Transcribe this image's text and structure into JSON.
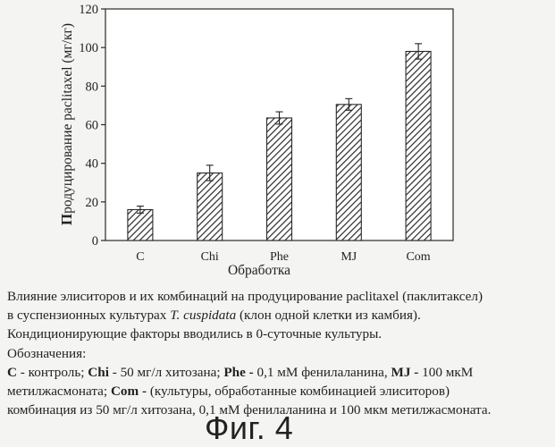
{
  "chart_data": {
    "type": "bar",
    "categories": [
      "C",
      "Chi",
      "Phe",
      "MJ",
      "Com"
    ],
    "values": [
      16,
      35,
      63.5,
      70.5,
      98
    ],
    "errors": [
      1.8,
      4,
      3.2,
      3,
      4
    ],
    "ylabel_bold": "П",
    "ylabel_rest": "родуцирование paclitaxel (мг/кг)",
    "xlabel": "Обработка",
    "ylim": [
      0,
      120
    ],
    "yticks": [
      0,
      20,
      40,
      60,
      80,
      100,
      120
    ],
    "grid": false,
    "bar_fill": "hatched diagonal",
    "colors": {
      "bar_line": "#2a2a2a",
      "plot_bg": "#ffffff",
      "axis": "#2a2a2a"
    }
  },
  "caption": {
    "line1": "Влияние элиситоров и их комбинаций на продуцирование paclitaxel (паклитаксел)",
    "line2_pre": "в суспензионных культурах ",
    "line2_species": "T. cuspidata",
    "line2_post": " (клон одной клетки из камбия).",
    "line3": "Кондиционирующие факторы вводились в 0-суточные культуры.",
    "line4": "Обозначения:",
    "line5_c_key": "C",
    "line5_c_val": " - контроль; ",
    "line5_chi_key": "Chi",
    "line5_chi_val": " - 50 мг/л хитозана; ",
    "line5_phe_key": "Phe -",
    "line5_phe_val": " 0,1 мМ фенилаланина, ",
    "line5_mj_key": "MJ -",
    "line5_mj_val": " 100 мкМ",
    "line6_pre": "метилжасмоната; ",
    "line6_com_key": "Com -",
    "line6_post": " (культуры, обработанные комбинацией элиситоров)",
    "line7": "комбинация из 50 мг/л хитозана, 0,1 мМ фенилаланина и 100 мкм метилжасмоната."
  },
  "figure_label": "Фиг. 4"
}
